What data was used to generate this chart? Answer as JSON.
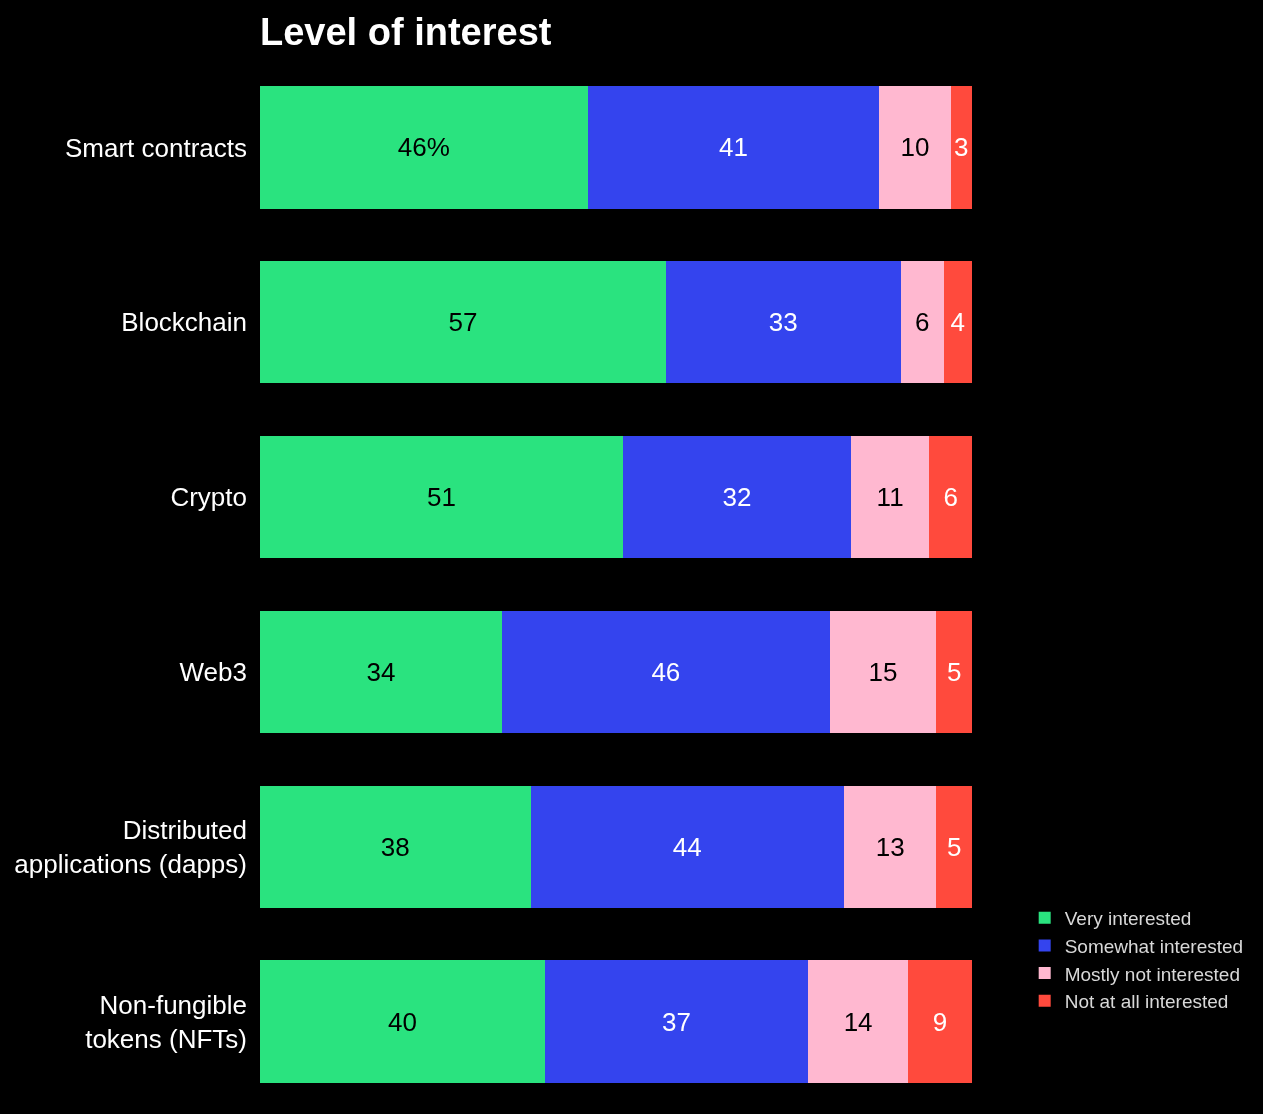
{
  "chart_data": {
    "type": "bar",
    "orientation": "horizontal",
    "stacked": true,
    "title": "Level of interest",
    "categories": [
      "Smart contracts",
      "Blockchain",
      "Crypto",
      "Web3",
      "Distributed\napplications (dapps)",
      "Non-fungible\ntokens (NFTs)"
    ],
    "series": [
      {
        "name": "Very interested",
        "color": "#2ae37f",
        "values": [
          46,
          57,
          51,
          34,
          38,
          40
        ],
        "value_labels": [
          "46%",
          "57",
          "51",
          "34",
          "38",
          "40"
        ]
      },
      {
        "name": "Somewhat interested",
        "color": "#3444ee",
        "values": [
          41,
          33,
          32,
          46,
          44,
          37
        ],
        "value_labels": [
          "41",
          "33",
          "32",
          "46",
          "44",
          "37"
        ]
      },
      {
        "name": "Mostly not interested",
        "color": "#ffb8d0",
        "values": [
          10,
          6,
          11,
          15,
          13,
          14
        ],
        "value_labels": [
          "10",
          "6",
          "11",
          "15",
          "13",
          "14"
        ]
      },
      {
        "name": "Not at all interested",
        "color": "#ff4a3d",
        "values": [
          3,
          4,
          6,
          5,
          5,
          9
        ],
        "value_labels": [
          "3",
          "4",
          "6",
          "5",
          "5",
          "9"
        ]
      }
    ],
    "tick_labels": "y",
    "legend": "bottom right"
  }
}
